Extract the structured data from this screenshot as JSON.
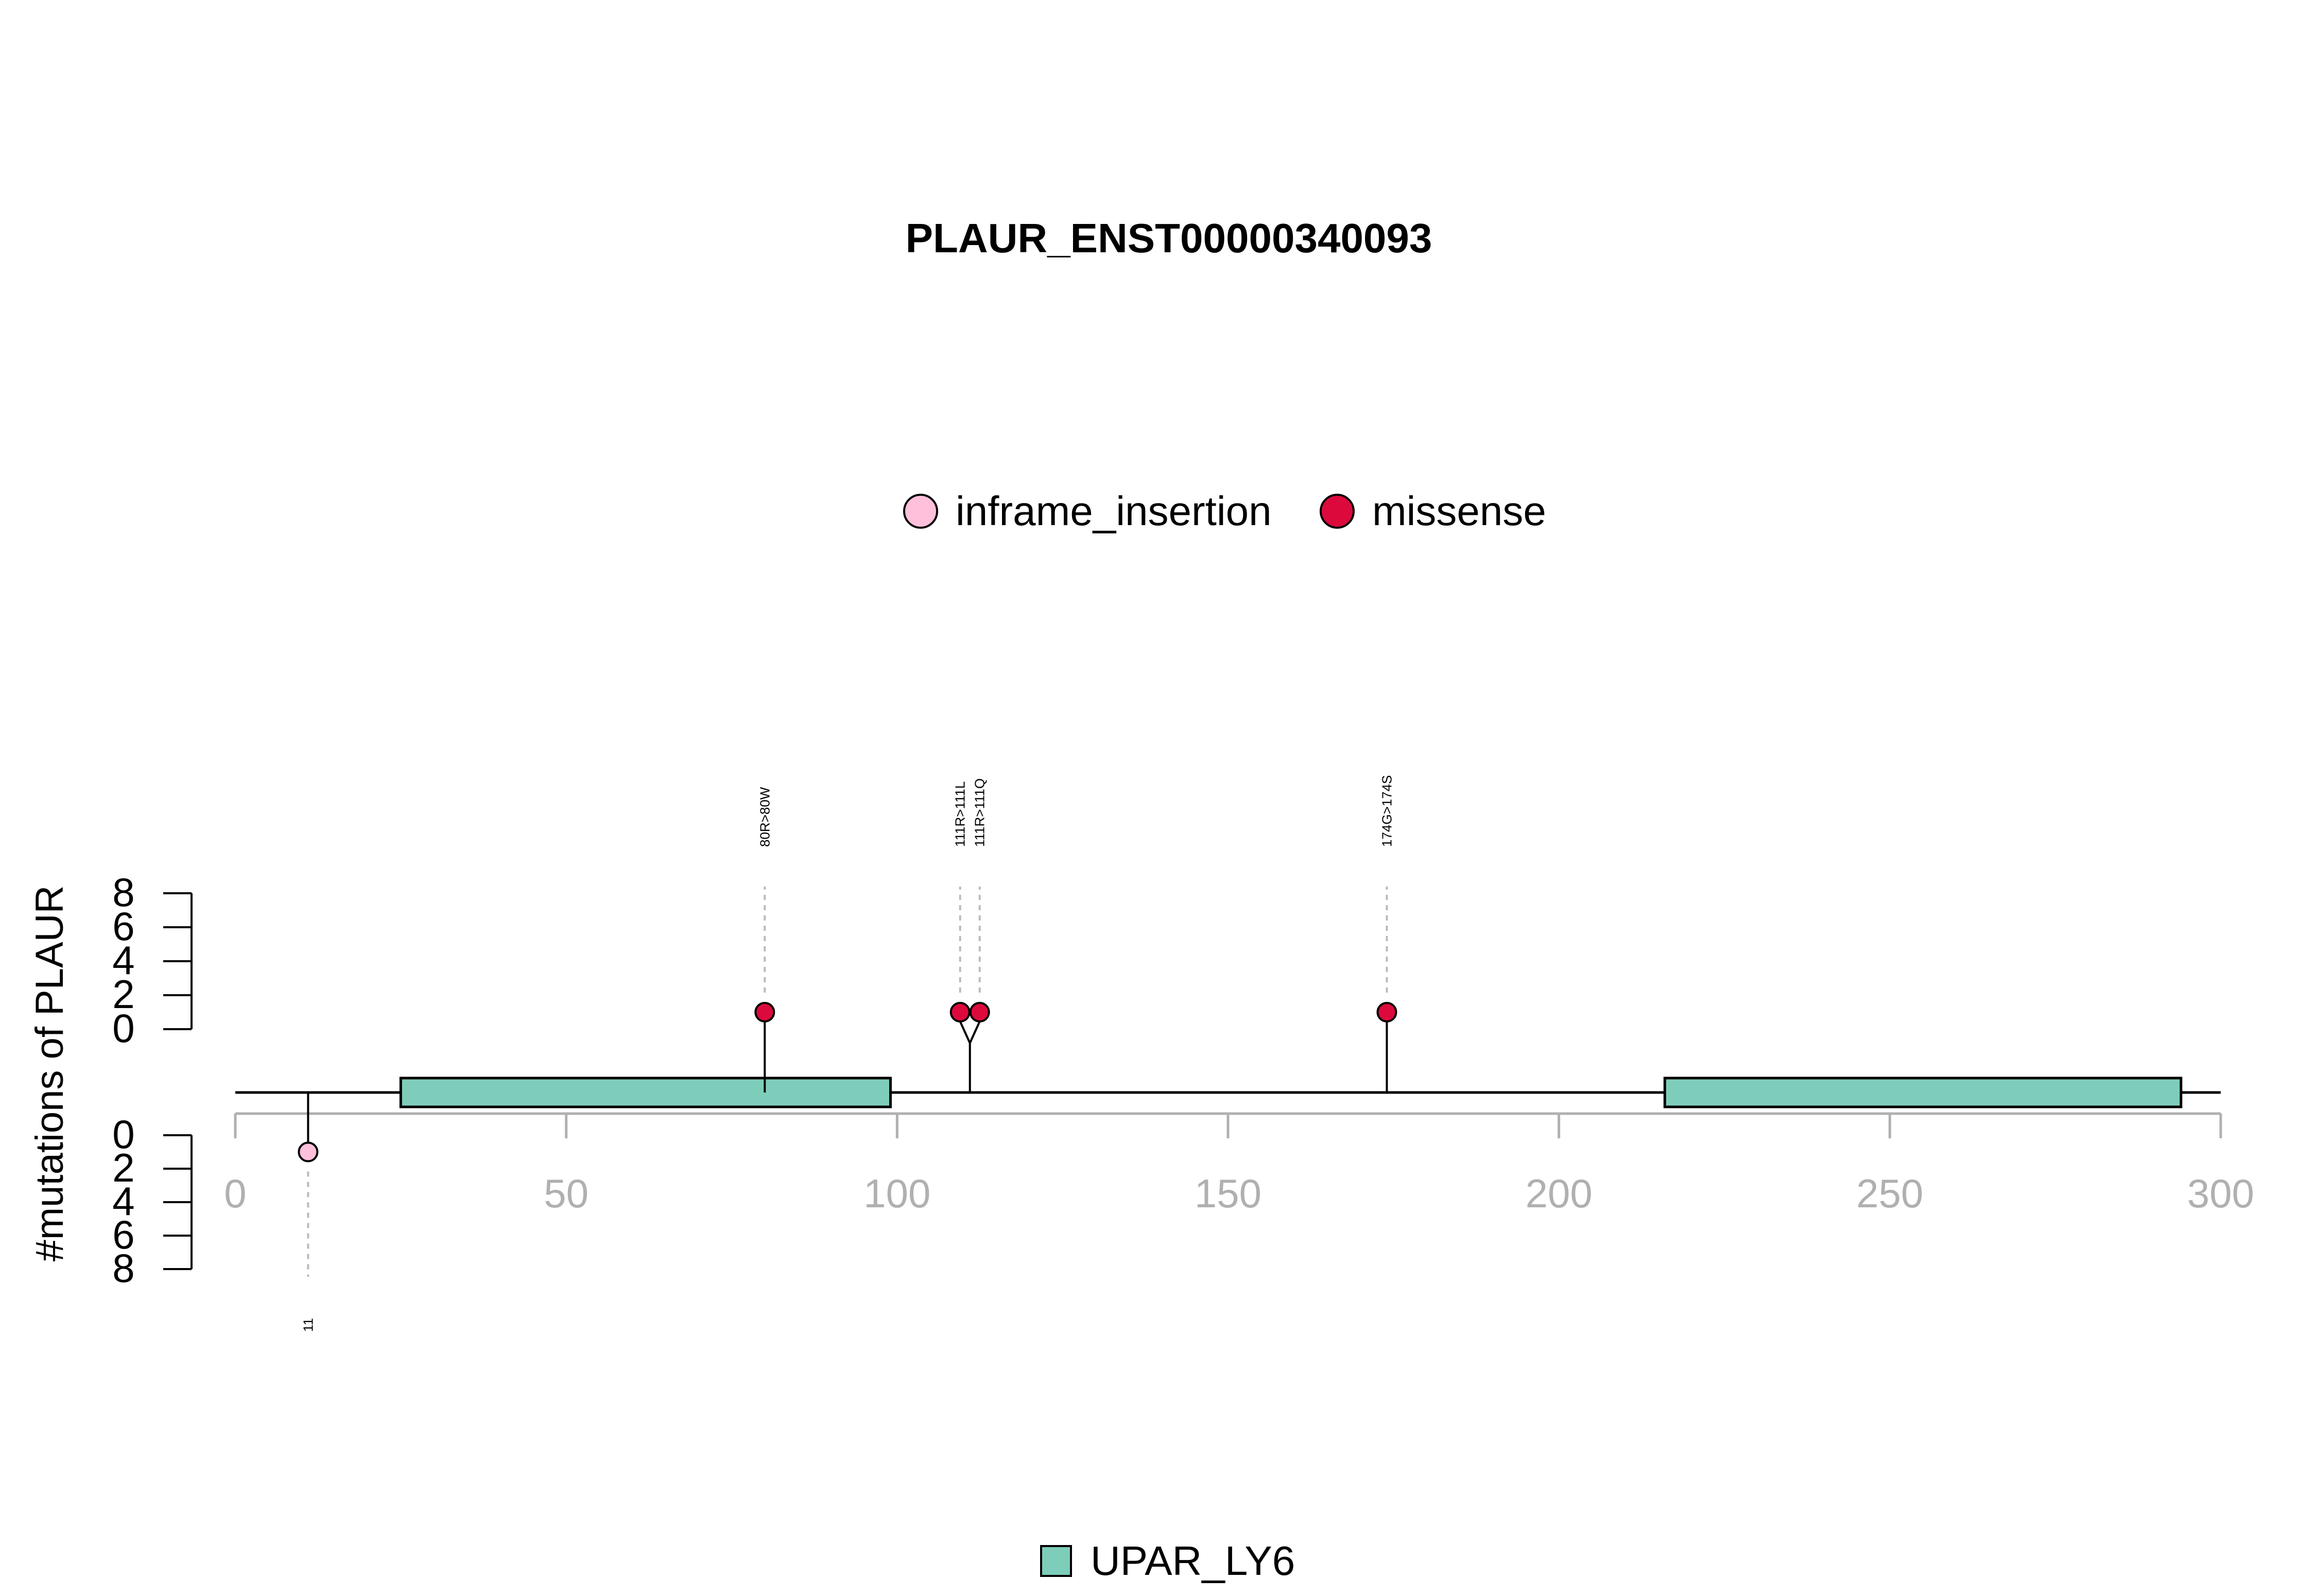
{
  "chart_data": {
    "type": "lollipop",
    "title": "PLAUR_ENST00000340093",
    "ylabel": "#mutations of PLAUR",
    "xlim": [
      0,
      300
    ],
    "x_ticks": [
      0,
      50,
      100,
      150,
      200,
      250,
      300
    ],
    "y_ticks": [
      0,
      2,
      4,
      6,
      8
    ],
    "protein_length": 300,
    "legend_mutations": [
      {
        "label": "inframe_insertion",
        "color": "#FFC0DC"
      },
      {
        "label": "missense",
        "color": "#DC0A3C"
      }
    ],
    "legend_domains": [
      {
        "label": "UPAR_LY6",
        "color": "#7ECDBB"
      }
    ],
    "domains": [
      {
        "name": "UPAR_LY6",
        "start": 25,
        "end": 99
      },
      {
        "name": "UPAR_LY6",
        "start": 216,
        "end": 294
      }
    ],
    "mutations_top": [
      {
        "position": 80,
        "label": "80R>80W",
        "type": "missense",
        "count": 1
      },
      {
        "position": 111,
        "label": "111R>111L",
        "type": "missense",
        "count": 1
      },
      {
        "position": 111,
        "label": "111R>111Q",
        "type": "missense",
        "count": 1
      },
      {
        "position": 174,
        "label": "174G>174S",
        "type": "missense",
        "count": 1
      }
    ],
    "mutations_bottom": [
      {
        "position": 11,
        "label": "11",
        "type": "inframe_insertion",
        "count": 1
      }
    ]
  }
}
